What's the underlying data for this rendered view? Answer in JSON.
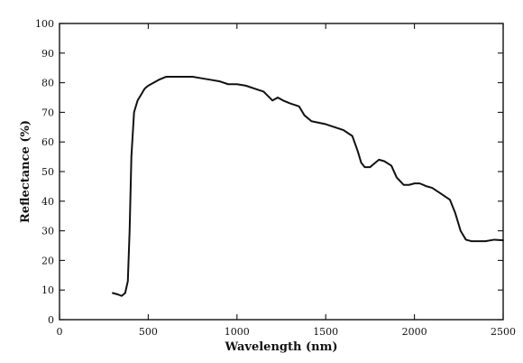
{
  "chart_data": {
    "type": "line",
    "title": "",
    "xlabel": "Wavelength (nm)",
    "ylabel": "Reflectance (%)",
    "xlim": [
      0,
      2500
    ],
    "ylim": [
      0,
      100
    ],
    "x_ticks": [
      "0",
      "500",
      "1000",
      "1500",
      "2000",
      "2500"
    ],
    "y_ticks": [
      "0",
      "10",
      "20",
      "30",
      "40",
      "50",
      "60",
      "70",
      "80",
      "90",
      "100"
    ],
    "grid": false,
    "legend": "none",
    "series": [
      {
        "color": "#111111",
        "x": [
          300,
          330,
          350,
          370,
          385,
          395,
          405,
          420,
          440,
          460,
          480,
          500,
          530,
          560,
          600,
          650,
          700,
          750,
          800,
          850,
          900,
          950,
          1000,
          1050,
          1100,
          1150,
          1200,
          1230,
          1260,
          1300,
          1350,
          1380,
          1420,
          1460,
          1500,
          1550,
          1600,
          1650,
          1680,
          1700,
          1720,
          1750,
          1780,
          1800,
          1830,
          1870,
          1900,
          1940,
          1970,
          2000,
          2030,
          2070,
          2100,
          2150,
          2200,
          2230,
          2260,
          2290,
          2320,
          2350,
          2400,
          2450,
          2500
        ],
        "y": [
          9,
          8.5,
          8,
          9,
          13,
          30,
          55,
          70,
          74,
          76,
          78,
          79,
          80,
          81,
          82,
          82,
          82,
          82,
          81.5,
          81,
          80.5,
          79.5,
          79.5,
          79,
          78,
          77,
          74,
          75,
          74,
          73,
          72,
          69,
          67,
          66.5,
          66,
          65,
          64,
          62,
          57,
          53,
          51.5,
          51.5,
          53,
          54,
          53.5,
          52,
          48,
          45.5,
          45.5,
          46,
          46,
          45,
          44.5,
          42.5,
          40.5,
          36,
          30,
          27,
          26.5,
          26.5,
          26.5,
          27,
          26.8
        ]
      }
    ]
  }
}
